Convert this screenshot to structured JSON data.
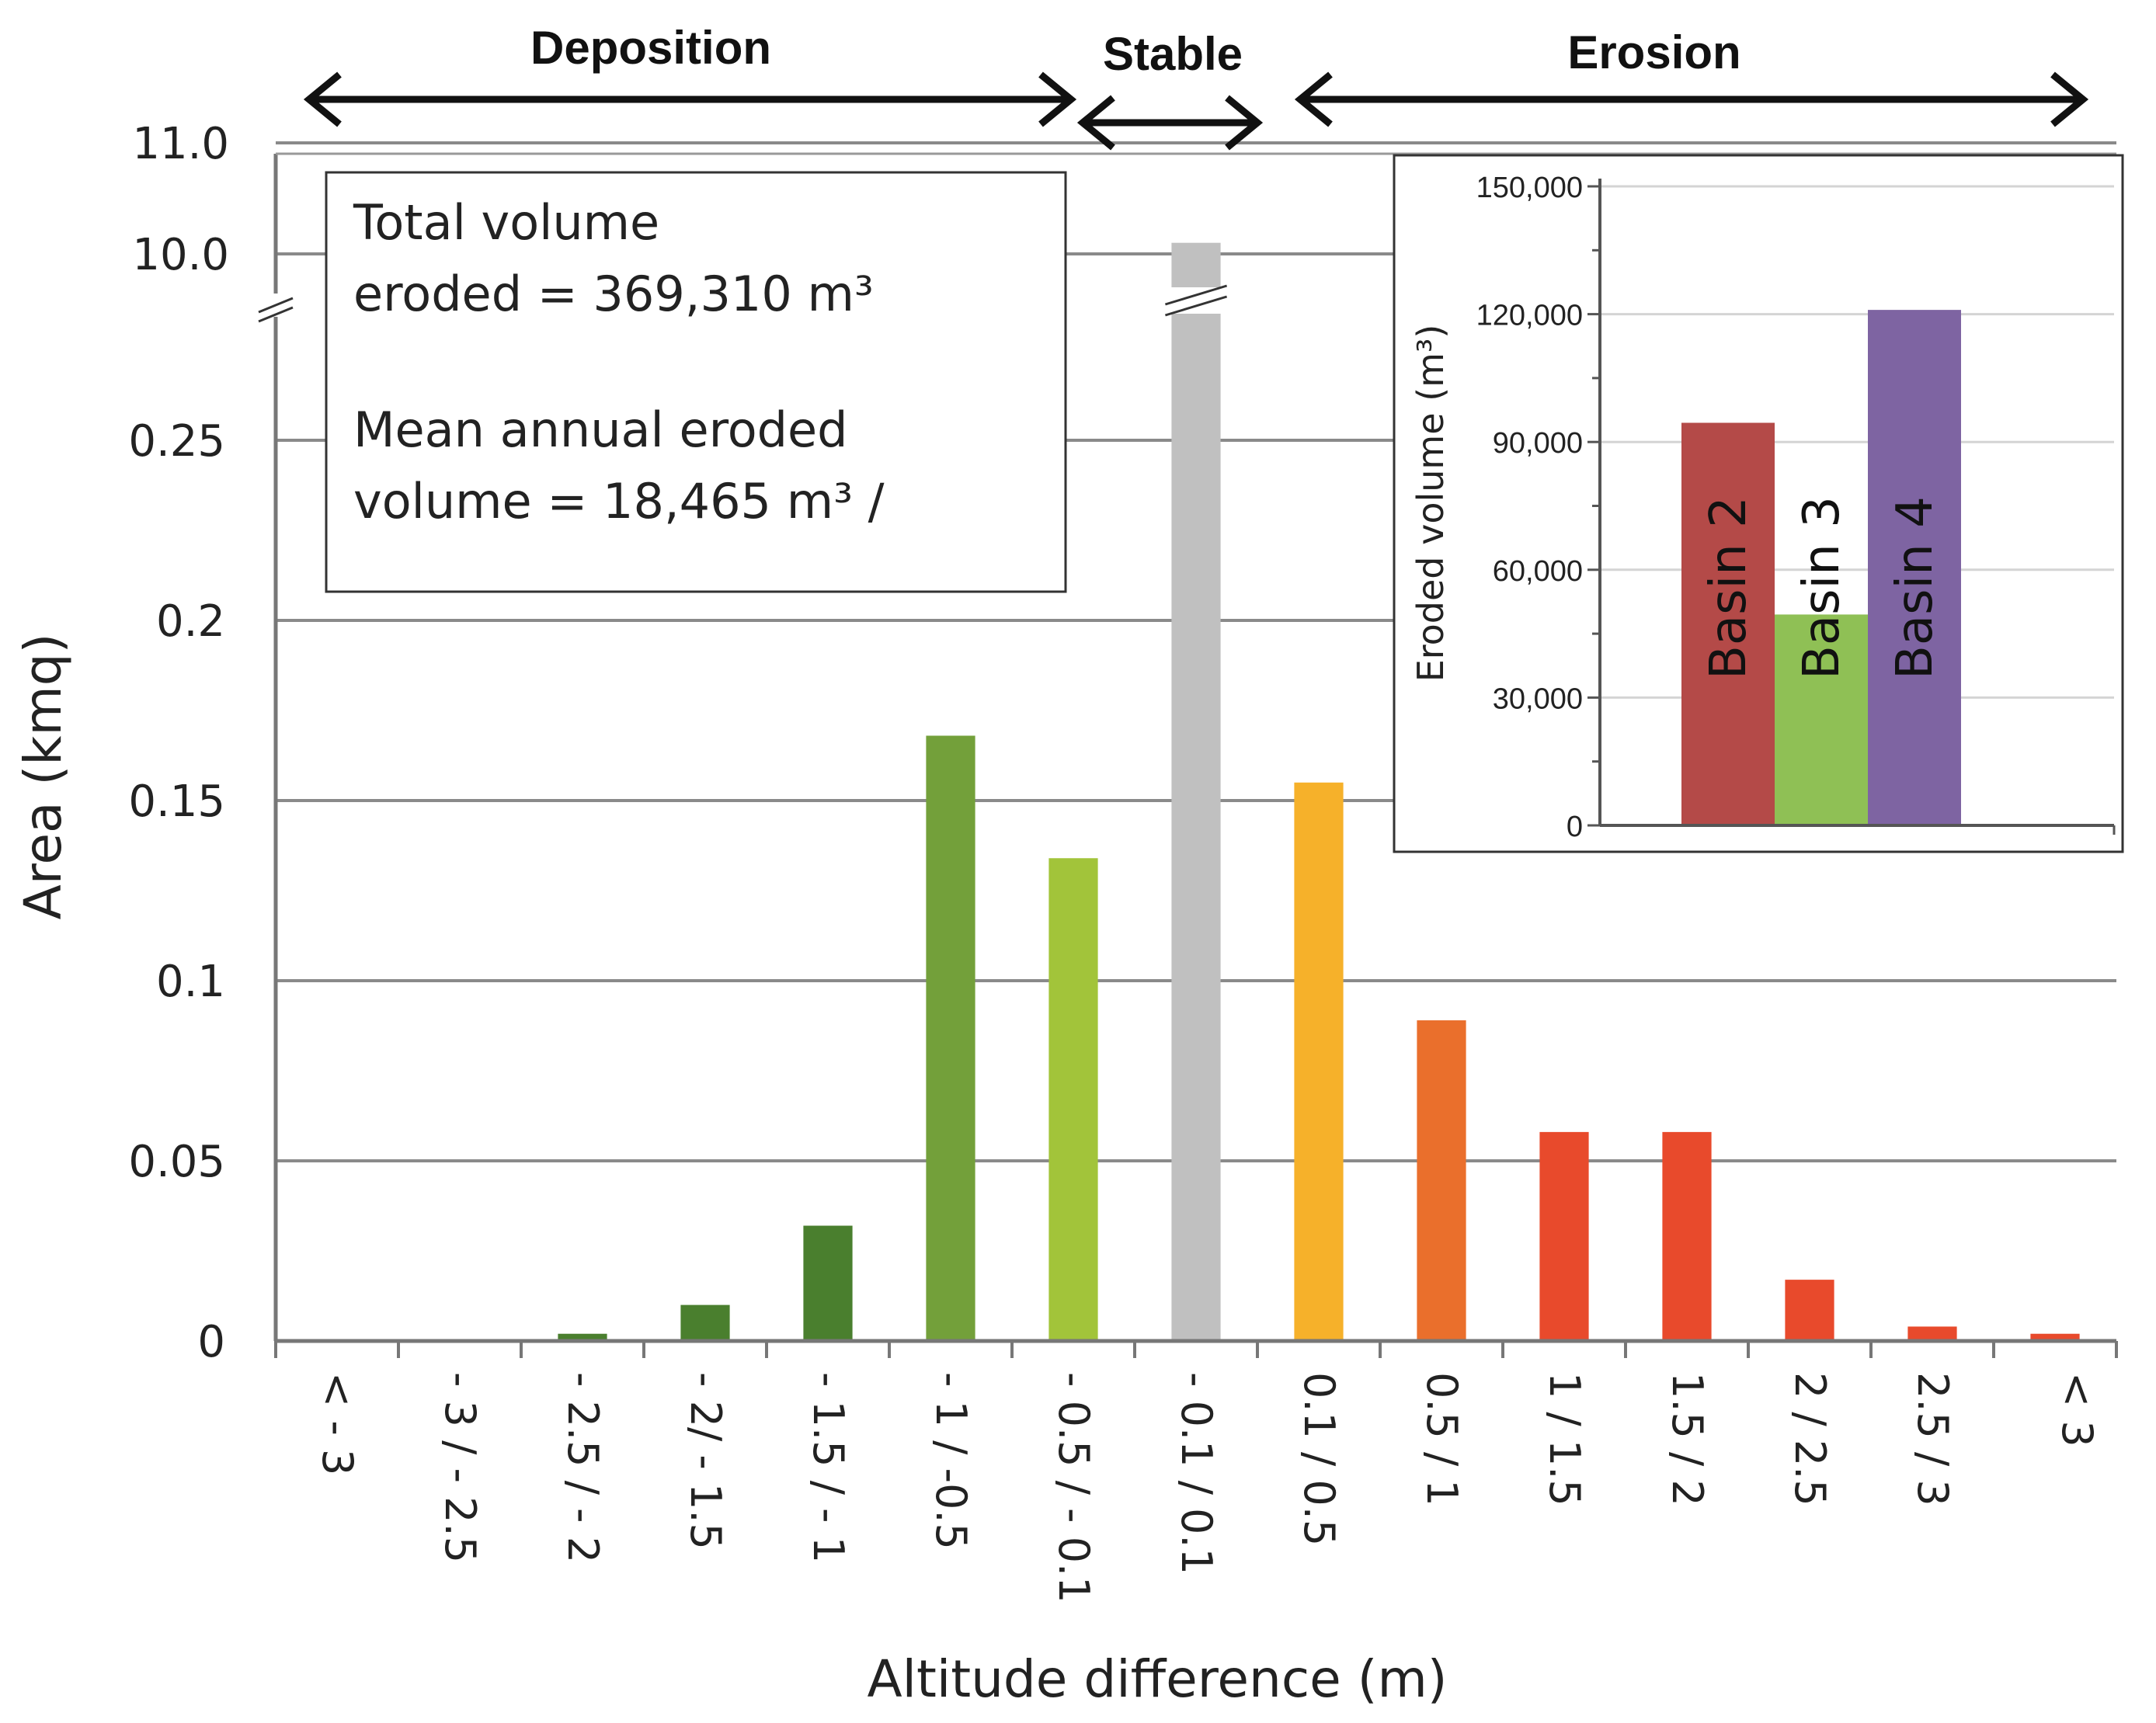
{
  "chart_data": [
    {
      "type": "bar",
      "xlabel": "Altitude difference (m)",
      "ylabel": "Area (kmq)",
      "categories": [
        "< - 3",
        "- 3 / - 2.5",
        "- 2.5 / - 2",
        "- 2/ - 1.5",
        "- 1.5 / - 1",
        "- 1 / -0.5",
        "- 0.5 / - 0.1",
        "- 0.1 / 0.1",
        "0.1 / 0.5",
        "0.5 / 1",
        "1 / 1.5",
        "1.5 / 2",
        "2 / 2.5",
        "2.5 / 3",
        "< 3"
      ],
      "values": [
        0,
        0,
        0.002,
        0.01,
        0.032,
        0.168,
        0.134,
        10.1,
        0.155,
        0.089,
        0.058,
        0.058,
        0.017,
        0.004,
        0.002
      ],
      "colors": [
        "#4a7f2e",
        "#4a7f2e",
        "#4a7f2e",
        "#4a7f2e",
        "#4a7f2e",
        "#73a03a",
        "#a2c43a",
        "#c0c0c0",
        "#f6b12a",
        "#ea6f2c",
        "#e84a2c",
        "#e84a2c",
        "#e84a2c",
        "#e84a2c",
        "#e84a2c"
      ],
      "ylim": [
        0,
        11
      ],
      "axis_break": {
        "lower_max": 0.3,
        "upper_min": 10.0
      },
      "y_ticks_lower": [
        "0",
        "0.05",
        "0.1",
        "0.15",
        "0.2",
        "0.25"
      ],
      "y_ticks_upper": [
        "10.0",
        "11.0"
      ],
      "grid": true,
      "zones": [
        {
          "label": "Deposition",
          "from_category": 0,
          "to_category": 6
        },
        {
          "label": "Stable",
          "from_category": 7,
          "to_category": 7
        },
        {
          "label": "Erosion",
          "from_category": 8,
          "to_category": 14
        }
      ],
      "annotation": {
        "line1": "Total volume",
        "line2": "eroded = 369,310 m³",
        "line3": "Mean annual eroded",
        "line4": "volume = 18,465 m³ /"
      }
    },
    {
      "type": "bar",
      "ylabel": "Eroded volume (m³)",
      "categories": [
        "Basin 2",
        "Basin 3",
        "Basin 4"
      ],
      "values": [
        94500,
        49500,
        121000
      ],
      "colors": [
        "#b44a48",
        "#8fc055",
        "#7e64a2"
      ],
      "ylim": [
        0,
        150000
      ],
      "y_ticks": [
        "0",
        "30,000",
        "60,000",
        "90,000",
        "120,000",
        "150,000"
      ],
      "grid": true
    }
  ]
}
